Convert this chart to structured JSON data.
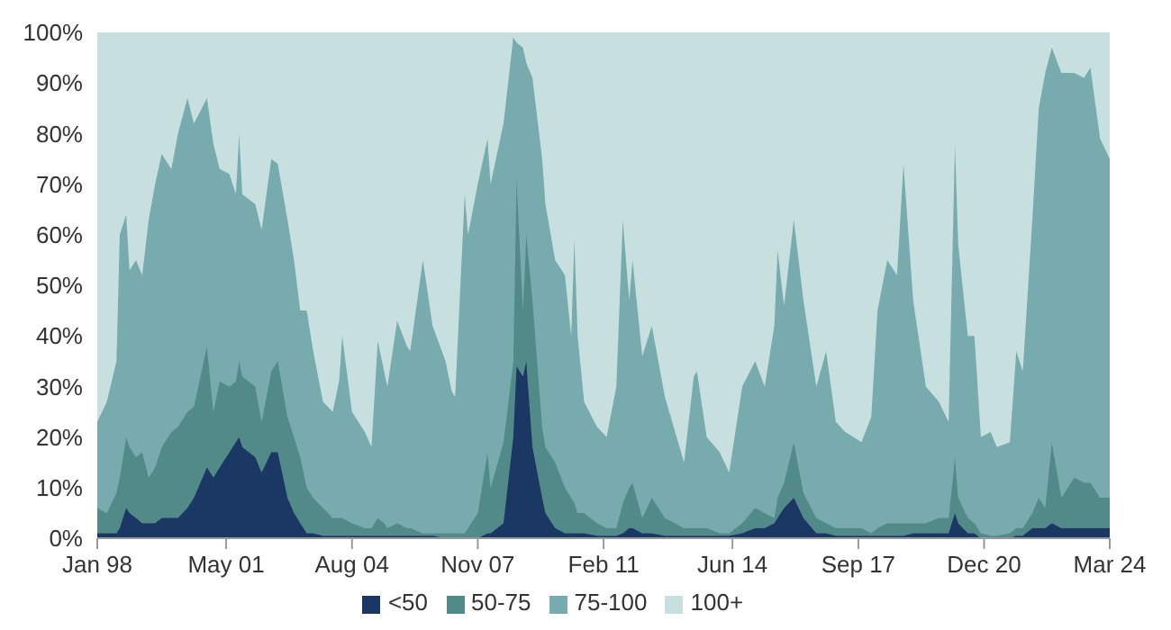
{
  "chart_data": {
    "type": "area",
    "stacked": true,
    "x": [
      "1998-01",
      "1998-04",
      "1998-07",
      "1998-08",
      "1998-10",
      "1998-11",
      "1999-01",
      "1999-03",
      "1999-05",
      "1999-07",
      "1999-09",
      "1999-12",
      "2000-02",
      "2000-05",
      "2000-07",
      "2000-11",
      "2001-01",
      "2001-03",
      "2001-06",
      "2001-08",
      "2001-09",
      "2001-10",
      "2002-02",
      "2002-04",
      "2002-07",
      "2002-09",
      "2002-12",
      "2003-02",
      "2003-04",
      "2003-06",
      "2003-08",
      "2003-11",
      "2004-02",
      "2004-04",
      "2004-05",
      "2004-08",
      "2004-12",
      "2005-02",
      "2005-04",
      "2005-06",
      "2005-07",
      "2005-10",
      "2006-01",
      "2006-02",
      "2006-06",
      "2006-09",
      "2007-01",
      "2007-03",
      "2007-04",
      "2007-07",
      "2007-08",
      "2007-11",
      "2008-02",
      "2008-03",
      "2008-07",
      "2008-10",
      "2008-11",
      "2009-01",
      "2009-02",
      "2009-04",
      "2009-07",
      "2009-08",
      "2009-11",
      "2010-02",
      "2010-04",
      "2010-05",
      "2010-06",
      "2010-08",
      "2010-12",
      "2011-03",
      "2011-06",
      "2011-08",
      "2011-10",
      "2011-11",
      "2012-02",
      "2012-05",
      "2012-09",
      "2013-03",
      "2013-06",
      "2013-07",
      "2013-10",
      "2014-02",
      "2014-05",
      "2014-09",
      "2015-01",
      "2015-04",
      "2015-07",
      "2015-08",
      "2015-10",
      "2016-01",
      "2016-04",
      "2016-08",
      "2016-11",
      "2017-02",
      "2017-05",
      "2017-10",
      "2018-01",
      "2018-03",
      "2018-06",
      "2018-09",
      "2018-11",
      "2019-02",
      "2019-06",
      "2019-10",
      "2020-01",
      "2020-03",
      "2020-04",
      "2020-07",
      "2020-09",
      "2020-11",
      "2021-02",
      "2021-04",
      "2021-08",
      "2021-10",
      "2021-12",
      "2022-03",
      "2022-05",
      "2022-07",
      "2022-09",
      "2022-12",
      "2023-04",
      "2023-07",
      "2023-09",
      "2023-12",
      "2024-03"
    ],
    "series": [
      {
        "name": "<50",
        "color": "#1b3764",
        "values": [
          1,
          1,
          1,
          2,
          6,
          5,
          4,
          3,
          3,
          3,
          4,
          4,
          4,
          6,
          8,
          14,
          12,
          14,
          17,
          19,
          20,
          18,
          16,
          13,
          17,
          17,
          8,
          5,
          3,
          1,
          1,
          0.5,
          0.5,
          0.5,
          0.5,
          0.5,
          0.5,
          0.5,
          0.5,
          0.5,
          0.5,
          0.5,
          0.5,
          0.5,
          0.5,
          0.5,
          0,
          0,
          0,
          0,
          0,
          0,
          1,
          1,
          3,
          20,
          34,
          32,
          35,
          18,
          8,
          5,
          2,
          1,
          1,
          1,
          1,
          1,
          0.5,
          0.5,
          0.5,
          1,
          2,
          2,
          1,
          1,
          0.5,
          0.5,
          0.5,
          0.5,
          0.5,
          0.5,
          0.5,
          1,
          2,
          2,
          3,
          4,
          6,
          8,
          4,
          1,
          1,
          0.5,
          0.5,
          0.5,
          0.5,
          0.5,
          0.5,
          0.5,
          0.5,
          1,
          1,
          1,
          1,
          5,
          3,
          1,
          1,
          0,
          0,
          0,
          0,
          0.5,
          0.5,
          2,
          2,
          2,
          3,
          2,
          2,
          2,
          2,
          2,
          2
        ]
      },
      {
        "name": "50-75",
        "color": "#528a8a",
        "values": [
          5,
          4,
          8,
          10,
          14,
          13,
          12,
          14,
          9,
          11,
          14,
          17,
          18,
          19,
          18,
          24,
          13,
          17,
          13,
          12,
          15,
          14,
          14,
          10,
          16,
          18,
          16,
          15,
          13,
          9,
          7,
          5.5,
          3.5,
          3.5,
          3.5,
          2.5,
          1.5,
          1.5,
          3.5,
          2.5,
          1.5,
          2.5,
          1.5,
          1.5,
          0.5,
          0.5,
          1,
          1,
          1,
          1,
          2,
          5,
          16,
          9,
          16,
          15,
          37,
          13,
          25,
          29,
          14,
          13,
          13,
          9,
          7,
          6,
          4,
          4,
          2.5,
          1.5,
          1.5,
          6,
          8,
          9,
          3,
          7,
          3.5,
          1.5,
          1.5,
          1.5,
          1.5,
          0.5,
          0.5,
          2,
          4,
          3,
          1,
          4,
          5,
          11,
          5,
          3,
          2,
          1.5,
          1.5,
          1.5,
          0.5,
          1.5,
          2.5,
          2.5,
          2.5,
          2,
          2,
          3,
          3,
          11,
          5,
          3,
          2,
          1,
          0.5,
          0.5,
          1,
          1.5,
          1.5,
          3,
          6,
          4,
          16,
          6,
          10,
          9,
          9,
          6,
          6
        ]
      },
      {
        "name": "75-100",
        "color": "#77abae",
        "values": [
          17,
          22,
          26,
          48,
          44,
          35,
          39,
          35,
          51,
          56,
          58,
          52,
          58,
          62,
          56,
          49,
          53,
          42,
          42,
          37,
          45,
          36,
          36,
          38,
          42,
          39,
          39,
          35,
          29,
          35,
          29,
          21,
          21,
          27,
          36,
          22,
          19,
          16,
          35,
          30,
          28,
          40,
          36,
          35,
          54,
          41,
          34,
          28,
          27,
          67,
          58,
          65,
          62,
          60,
          63,
          64,
          27,
          52,
          34,
          44,
          53,
          48,
          40,
          42,
          32,
          52,
          35,
          22,
          19,
          18,
          28,
          56,
          37,
          44,
          32,
          34,
          24,
          13,
          30,
          31,
          18,
          16,
          12,
          27,
          29,
          25,
          38,
          49,
          35,
          44,
          38,
          26,
          34,
          21,
          19,
          17,
          23,
          43,
          52,
          49,
          71,
          44,
          27,
          23,
          19,
          62,
          50,
          36,
          37,
          19,
          20.5,
          17.5,
          18,
          35,
          31,
          58,
          77,
          86,
          78,
          84,
          80,
          80,
          82,
          71,
          67
        ]
      },
      {
        "name": "100+",
        "color": "#c8dfe0",
        "values": [
          77,
          73,
          65,
          40,
          36,
          47,
          45,
          48,
          37,
          30,
          24,
          27,
          20,
          13,
          18,
          13,
          22,
          27,
          28,
          32,
          20,
          32,
          34,
          39,
          25,
          26,
          37,
          45,
          55,
          55,
          63,
          73,
          75,
          69,
          60,
          75,
          79,
          82,
          61,
          67,
          70,
          57,
          62,
          63,
          45,
          58,
          65,
          71,
          72,
          32,
          40,
          30,
          21,
          30,
          18,
          1,
          2,
          3,
          6,
          9,
          25,
          34,
          45,
          48,
          60,
          41,
          60,
          73,
          78,
          80,
          70,
          37,
          53,
          45,
          64,
          58,
          72,
          85,
          68,
          67,
          80,
          83,
          87,
          70,
          65,
          70,
          58,
          43,
          54,
          37,
          53,
          70,
          63,
          77,
          79,
          81,
          76,
          55,
          45,
          48,
          26,
          53,
          70,
          73,
          77,
          22,
          42,
          60,
          60,
          80,
          79,
          82,
          81,
          63,
          67,
          37,
          15,
          8,
          3,
          8,
          8,
          9,
          7,
          21,
          25
        ]
      }
    ],
    "xlim": [
      "1998-01",
      "2024-03"
    ],
    "xticks": [
      {
        "value": "1998-01",
        "label": "Jan 98"
      },
      {
        "value": "2001-05",
        "label": "May 01"
      },
      {
        "value": "2004-08",
        "label": "Aug 04"
      },
      {
        "value": "2007-11",
        "label": "Nov 07"
      },
      {
        "value": "2011-02",
        "label": "Feb 11"
      },
      {
        "value": "2014-06",
        "label": "Jun 14"
      },
      {
        "value": "2017-09",
        "label": "Sep 17"
      },
      {
        "value": "2020-12",
        "label": "Dec 20"
      },
      {
        "value": "2024-03",
        "label": "Mar 24"
      }
    ],
    "ylim": [
      0,
      100
    ],
    "yticks": [
      {
        "value": 0,
        "label": "0%"
      },
      {
        "value": 10,
        "label": "10%"
      },
      {
        "value": 20,
        "label": "20%"
      },
      {
        "value": 30,
        "label": "30%"
      },
      {
        "value": 40,
        "label": "40%"
      },
      {
        "value": 50,
        "label": "50%"
      },
      {
        "value": 60,
        "label": "60%"
      },
      {
        "value": 70,
        "label": "70%"
      },
      {
        "value": 80,
        "label": "80%"
      },
      {
        "value": 90,
        "label": "90%"
      },
      {
        "value": 100,
        "label": "100%"
      }
    ],
    "legend": "bottom"
  }
}
